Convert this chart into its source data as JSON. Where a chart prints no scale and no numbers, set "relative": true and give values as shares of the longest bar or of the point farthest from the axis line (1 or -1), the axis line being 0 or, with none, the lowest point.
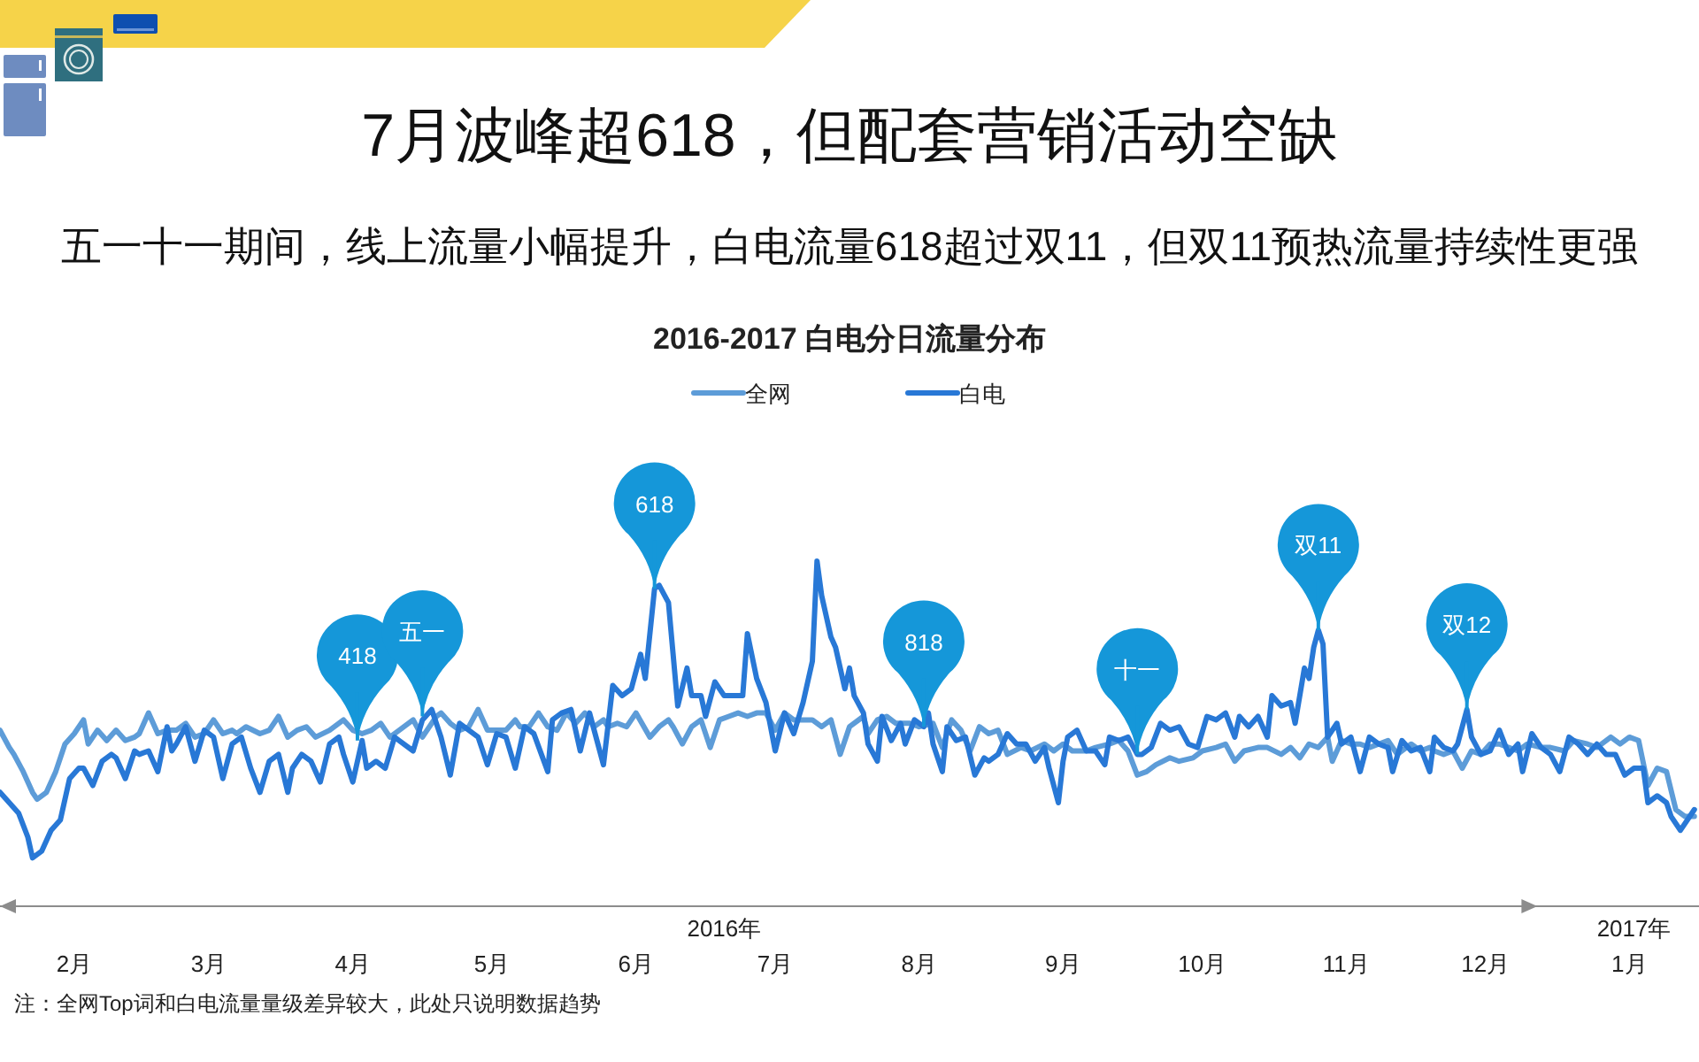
{
  "chart_data": {
    "type": "line",
    "relative": true,
    "title": "7月波峰超618，但配套营销活动空缺",
    "subtitle": "五一十一期间，线上流量小幅提升，白电流量618超过双11，但双11预热流量持续性更强",
    "legend": "top",
    "xlim": [
      "2016-02-01",
      "2017-02-01"
    ],
    "xticks": [
      {
        "value": "2016-02-17",
        "label": "2月"
      },
      {
        "value": "2016-03-17",
        "label": "3月"
      },
      {
        "value": "2016-04-17",
        "label": "4月"
      },
      {
        "value": "2016-05-17",
        "label": "5月"
      },
      {
        "value": "2016-06-17",
        "label": "6月"
      },
      {
        "value": "2016-07-17",
        "label": "7月"
      },
      {
        "value": "2016-08-17",
        "label": "8月"
      },
      {
        "value": "2016-09-17",
        "label": "9月"
      },
      {
        "value": "2016-10-17",
        "label": "10月"
      },
      {
        "value": "2016-11-17",
        "label": "11月"
      },
      {
        "value": "2016-12-17",
        "label": "12月"
      },
      {
        "value": "2017-01-17",
        "label": "1月"
      }
    ],
    "x2lim": [
      "2016-02-01",
      "2017-02-01"
    ],
    "x2ticks": [
      {
        "value": "2016-07-06",
        "label": "2016年"
      },
      {
        "value": "2017-01-18",
        "label": "2017年"
      }
    ],
    "series": [
      {
        "name": "全网",
        "color": "#5d9cd8",
        "x": [
          "2016-02-01",
          "2016-02-03",
          "2016-02-04",
          "2016-02-06",
          "2016-02-08",
          "2016-02-09",
          "2016-02-11",
          "2016-02-13",
          "2016-02-15",
          "2016-02-17",
          "2016-02-19",
          "2016-02-20",
          "2016-02-22",
          "2016-02-24",
          "2016-02-26",
          "2016-02-28",
          "2016-03-01",
          "2016-03-02",
          "2016-03-04",
          "2016-03-06",
          "2016-03-08",
          "2016-03-10",
          "2016-03-12",
          "2016-03-14",
          "2016-03-16",
          "2016-03-18",
          "2016-03-20",
          "2016-03-22",
          "2016-03-23",
          "2016-03-25",
          "2016-03-28",
          "2016-03-30",
          "2016-04-01",
          "2016-04-03",
          "2016-04-05",
          "2016-04-07",
          "2016-04-09",
          "2016-04-12",
          "2016-04-15",
          "2016-04-17",
          "2016-04-19",
          "2016-04-21",
          "2016-04-23",
          "2016-04-25",
          "2016-04-27",
          "2016-04-30",
          "2016-05-02",
          "2016-05-05",
          "2016-05-06",
          "2016-05-08",
          "2016-05-10",
          "2016-05-12",
          "2016-05-14",
          "2016-05-16",
          "2016-05-18",
          "2016-05-20",
          "2016-05-22",
          "2016-05-23",
          "2016-05-25",
          "2016-05-27",
          "2016-05-29",
          "2016-05-31",
          "2016-06-02",
          "2016-06-04",
          "2016-06-06",
          "2016-06-08",
          "2016-06-10",
          "2016-06-11",
          "2016-06-13",
          "2016-06-15",
          "2016-06-17",
          "2016-06-20",
          "2016-06-22",
          "2016-06-24",
          "2016-06-25",
          "2016-06-27",
          "2016-06-29",
          "2016-07-01",
          "2016-07-03",
          "2016-07-05",
          "2016-07-07",
          "2016-07-09",
          "2016-07-11",
          "2016-07-13",
          "2016-07-15",
          "2016-07-17",
          "2016-07-19",
          "2016-07-21",
          "2016-07-23",
          "2016-07-25",
          "2016-07-27",
          "2016-07-29",
          "2016-07-31",
          "2016-08-02",
          "2016-08-05",
          "2016-08-06",
          "2016-08-08",
          "2016-08-10",
          "2016-08-12",
          "2016-08-15",
          "2016-08-17",
          "2016-08-20",
          "2016-08-22",
          "2016-08-24",
          "2016-08-26",
          "2016-08-28",
          "2016-08-30",
          "2016-09-01",
          "2016-09-03",
          "2016-09-05",
          "2016-09-08",
          "2016-09-10",
          "2016-09-13",
          "2016-09-15",
          "2016-09-17",
          "2016-09-19",
          "2016-09-22",
          "2016-09-24",
          "2016-09-27",
          "2016-09-29",
          "2016-10-01",
          "2016-10-03",
          "2016-10-05",
          "2016-10-07",
          "2016-10-10",
          "2016-10-12",
          "2016-10-15",
          "2016-10-17",
          "2016-10-20",
          "2016-10-22",
          "2016-10-24",
          "2016-10-26",
          "2016-10-29",
          "2016-10-31",
          "2016-11-03",
          "2016-11-05",
          "2016-11-07",
          "2016-11-09",
          "2016-11-11",
          "2016-11-13",
          "2016-11-14",
          "2016-11-16",
          "2016-11-18",
          "2016-11-20",
          "2016-11-22",
          "2016-11-24",
          "2016-11-26",
          "2016-11-28",
          "2016-12-01",
          "2016-12-03",
          "2016-12-05",
          "2016-12-06",
          "2016-12-08",
          "2016-12-10",
          "2016-12-12",
          "2016-12-14",
          "2016-12-16",
          "2016-12-18",
          "2016-12-20",
          "2016-12-22",
          "2016-12-24",
          "2016-12-26",
          "2016-12-29",
          "2016-12-31",
          "2017-01-03",
          "2017-01-05",
          "2017-01-08",
          "2017-01-10",
          "2017-01-13",
          "2017-01-15",
          "2017-01-17",
          "2017-01-19",
          "2017-01-21",
          "2017-01-23",
          "2017-01-25",
          "2017-01-27",
          "2017-01-29",
          "2017-01-31"
        ],
        "values": [
          0.51,
          0.46,
          0.44,
          0.39,
          0.33,
          0.31,
          0.33,
          0.39,
          0.47,
          0.5,
          0.54,
          0.47,
          0.51,
          0.48,
          0.51,
          0.48,
          0.49,
          0.5,
          0.56,
          0.5,
          0.51,
          0.51,
          0.53,
          0.49,
          0.5,
          0.54,
          0.5,
          0.51,
          0.5,
          0.52,
          0.5,
          0.51,
          0.55,
          0.49,
          0.51,
          0.52,
          0.49,
          0.51,
          0.54,
          0.51,
          0.5,
          0.51,
          0.53,
          0.49,
          0.51,
          0.54,
          0.49,
          0.55,
          0.56,
          0.53,
          0.51,
          0.52,
          0.57,
          0.51,
          0.51,
          0.51,
          0.54,
          0.52,
          0.52,
          0.56,
          0.52,
          0.51,
          0.56,
          0.53,
          0.56,
          0.52,
          0.54,
          0.52,
          0.53,
          0.52,
          0.56,
          0.49,
          0.52,
          0.54,
          0.52,
          0.47,
          0.52,
          0.54,
          0.46,
          0.54,
          0.55,
          0.56,
          0.55,
          0.56,
          0.56,
          0.51,
          0.56,
          0.54,
          0.54,
          0.54,
          0.52,
          0.54,
          0.44,
          0.52,
          0.55,
          0.5,
          0.54,
          0.55,
          0.53,
          0.53,
          0.52,
          0.53,
          0.46,
          0.54,
          0.51,
          0.45,
          0.52,
          0.5,
          0.51,
          0.44,
          0.46,
          0.45,
          0.47,
          0.45,
          0.47,
          0.45,
          0.45,
          0.46,
          0.47,
          0.48,
          0.45,
          0.38,
          0.39,
          0.41,
          0.43,
          0.42,
          0.43,
          0.45,
          0.46,
          0.47,
          0.42,
          0.45,
          0.46,
          0.46,
          0.44,
          0.46,
          0.43,
          0.47,
          0.46,
          0.49,
          0.42,
          0.48,
          0.47,
          0.47,
          0.46,
          0.47,
          0.48,
          0.44,
          0.47,
          0.45,
          0.46,
          0.45,
          0.44,
          0.45,
          0.4,
          0.45,
          0.44,
          0.47,
          0.47,
          0.46,
          0.45,
          0.47,
          0.46,
          0.46,
          0.45,
          0.48,
          0.47,
          0.46,
          0.49,
          0.47,
          0.49,
          0.48,
          0.35,
          0.4,
          0.39,
          0.28,
          0.26,
          0.26
        ]
      },
      {
        "name": "白电",
        "color": "#2878d6",
        "x": [
          "2016-02-01",
          "2016-02-03",
          "2016-02-05",
          "2016-02-07",
          "2016-02-08",
          "2016-02-10",
          "2016-02-12",
          "2016-02-14",
          "2016-02-16",
          "2016-02-18",
          "2016-02-19",
          "2016-02-21",
          "2016-02-23",
          "2016-02-25",
          "2016-02-26",
          "2016-02-28",
          "2016-03-01",
          "2016-03-02",
          "2016-03-04",
          "2016-03-06",
          "2016-03-08",
          "2016-03-09",
          "2016-03-10",
          "2016-03-12",
          "2016-03-14",
          "2016-03-16",
          "2016-03-18",
          "2016-03-20",
          "2016-03-22",
          "2016-03-24",
          "2016-03-26",
          "2016-03-28",
          "2016-03-30",
          "2016-04-01",
          "2016-04-03",
          "2016-04-04",
          "2016-04-06",
          "2016-04-08",
          "2016-04-10",
          "2016-04-12",
          "2016-04-14",
          "2016-04-15",
          "2016-04-17",
          "2016-04-19",
          "2016-04-20",
          "2016-04-22",
          "2016-04-24",
          "2016-04-26",
          "2016-04-27",
          "2016-04-30",
          "2016-05-02",
          "2016-05-04",
          "2016-05-06",
          "2016-05-08",
          "2016-05-10",
          "2016-05-12",
          "2016-05-14",
          "2016-05-16",
          "2016-05-18",
          "2016-05-20",
          "2016-05-22",
          "2016-05-24",
          "2016-05-26",
          "2016-05-29",
          "2016-05-30",
          "2016-06-01",
          "2016-06-03",
          "2016-06-05",
          "2016-06-07",
          "2016-06-10",
          "2016-06-12",
          "2016-06-14",
          "2016-06-16",
          "2016-06-18",
          "2016-06-19",
          "2016-06-21",
          "2016-06-22",
          "2016-06-24",
          "2016-06-25",
          "2016-06-26",
          "2016-06-28",
          "2016-06-29",
          "2016-07-01",
          "2016-07-02",
          "2016-07-04",
          "2016-07-06",
          "2016-07-08",
          "2016-07-10",
          "2016-07-11",
          "2016-07-13",
          "2016-07-15",
          "2016-07-17",
          "2016-07-19",
          "2016-07-21",
          "2016-07-23",
          "2016-07-25",
          "2016-07-26",
          "2016-07-27",
          "2016-07-29",
          "2016-07-30",
          "2016-08-01",
          "2016-08-02",
          "2016-08-03",
          "2016-08-05",
          "2016-08-06",
          "2016-08-08",
          "2016-08-09",
          "2016-08-11",
          "2016-08-13",
          "2016-08-14",
          "2016-08-16",
          "2016-08-18",
          "2016-08-19",
          "2016-08-20",
          "2016-08-22",
          "2016-08-23",
          "2016-08-25",
          "2016-08-27",
          "2016-08-29",
          "2016-08-31",
          "2016-09-01",
          "2016-09-03",
          "2016-09-05",
          "2016-09-07",
          "2016-09-09",
          "2016-09-11",
          "2016-09-13",
          "2016-09-14",
          "2016-09-16",
          "2016-09-17",
          "2016-09-18",
          "2016-09-20",
          "2016-09-22",
          "2016-09-24",
          "2016-09-26",
          "2016-09-27",
          "2016-09-29",
          "2016-10-01",
          "2016-10-03",
          "2016-10-04",
          "2016-10-06",
          "2016-10-08",
          "2016-10-10",
          "2016-10-12",
          "2016-10-14",
          "2016-10-16",
          "2016-10-18",
          "2016-10-20",
          "2016-10-22",
          "2016-10-24",
          "2016-10-25",
          "2016-10-27",
          "2016-10-29",
          "2016-10-31",
          "2016-11-01",
          "2016-11-03",
          "2016-11-05",
          "2016-11-06",
          "2016-11-08",
          "2016-11-09",
          "2016-11-10",
          "2016-11-11",
          "2016-11-12",
          "2016-11-13",
          "2016-11-15",
          "2016-11-16",
          "2016-11-18",
          "2016-11-20",
          "2016-11-22",
          "2016-11-24",
          "2016-11-26",
          "2016-11-27",
          "2016-11-29",
          "2016-12-01",
          "2016-12-03",
          "2016-12-05",
          "2016-12-06",
          "2016-12-08",
          "2016-12-10",
          "2016-12-11",
          "2016-12-13",
          "2016-12-14",
          "2016-12-16",
          "2016-12-18",
          "2016-12-20",
          "2016-12-22",
          "2016-12-24",
          "2016-12-25",
          "2016-12-27",
          "2016-12-29",
          "2016-12-31",
          "2017-01-02",
          "2017-01-04",
          "2017-01-06",
          "2017-01-08",
          "2017-01-10",
          "2017-01-12",
          "2017-01-14",
          "2017-01-16",
          "2017-01-18",
          "2017-01-20",
          "2017-01-21",
          "2017-01-23",
          "2017-01-25",
          "2017-01-26",
          "2017-01-28",
          "2017-01-29",
          "2017-01-31"
        ],
        "values": [
          0.33,
          0.3,
          0.27,
          0.2,
          0.14,
          0.16,
          0.22,
          0.25,
          0.37,
          0.4,
          0.4,
          0.35,
          0.42,
          0.44,
          0.43,
          0.37,
          0.45,
          0.44,
          0.45,
          0.39,
          0.52,
          0.45,
          0.47,
          0.52,
          0.42,
          0.51,
          0.49,
          0.37,
          0.47,
          0.49,
          0.4,
          0.33,
          0.42,
          0.44,
          0.33,
          0.4,
          0.44,
          0.42,
          0.36,
          0.47,
          0.49,
          0.44,
          0.36,
          0.48,
          0.4,
          0.42,
          0.4,
          0.49,
          0.48,
          0.45,
          0.54,
          0.57,
          0.49,
          0.38,
          0.53,
          0.51,
          0.49,
          0.41,
          0.5,
          0.49,
          0.4,
          0.52,
          0.5,
          0.39,
          0.54,
          0.56,
          0.57,
          0.45,
          0.56,
          0.41,
          0.64,
          0.61,
          0.63,
          0.73,
          0.66,
          0.92,
          0.93,
          0.88,
          0.73,
          0.58,
          0.69,
          0.61,
          0.61,
          0.55,
          0.65,
          0.61,
          0.61,
          0.61,
          0.79,
          0.66,
          0.59,
          0.45,
          0.56,
          0.5,
          0.59,
          0.71,
          1.0,
          0.9,
          0.78,
          0.75,
          0.63,
          0.69,
          0.61,
          0.56,
          0.47,
          0.42,
          0.55,
          0.48,
          0.53,
          0.47,
          0.54,
          0.52,
          0.56,
          0.47,
          0.39,
          0.52,
          0.48,
          0.49,
          0.38,
          0.43,
          0.42,
          0.44,
          0.5,
          0.47,
          0.47,
          0.42,
          0.46,
          0.4,
          0.3,
          0.42,
          0.49,
          0.51,
          0.45,
          0.45,
          0.41,
          0.49,
          0.48,
          0.49,
          0.44,
          0.44,
          0.46,
          0.53,
          0.51,
          0.52,
          0.47,
          0.46,
          0.55,
          0.54,
          0.56,
          0.49,
          0.55,
          0.52,
          0.55,
          0.49,
          0.61,
          0.58,
          0.59,
          0.53,
          0.69,
          0.66,
          0.75,
          0.8,
          0.76,
          0.49,
          0.53,
          0.47,
          0.49,
          0.39,
          0.49,
          0.47,
          0.46,
          0.39,
          0.48,
          0.45,
          0.46,
          0.39,
          0.49,
          0.46,
          0.45,
          0.47,
          0.57,
          0.49,
          0.44,
          0.45,
          0.51,
          0.44,
          0.47,
          0.39,
          0.5,
          0.46,
          0.44,
          0.39,
          0.49,
          0.47,
          0.44,
          0.47,
          0.44,
          0.44,
          0.38,
          0.4,
          0.4,
          0.3,
          0.32,
          0.3,
          0.26,
          0.22,
          0.24,
          0.28
        ]
      }
    ],
    "annotations": [
      "2016-2017 白电分日流量分布",
      {
        "text": "418",
        "x": "2016-04-18",
        "y": 0.48
      },
      {
        "text": "五一",
        "x": "2016-05-02",
        "y": 0.55
      },
      {
        "text": "618",
        "x": "2016-06-21",
        "y": 0.92
      },
      {
        "text": "818",
        "x": "2016-08-18",
        "y": 0.52
      },
      {
        "text": "十一",
        "x": "2016-10-03",
        "y": 0.44
      },
      {
        "text": "双11",
        "x": "2016-11-11",
        "y": 0.8
      },
      {
        "text": "双12",
        "x": "2016-12-13",
        "y": 0.57
      },
      "注：全网Top词和白电流量量级差异较大，此处只说明数据趋势"
    ]
  }
}
